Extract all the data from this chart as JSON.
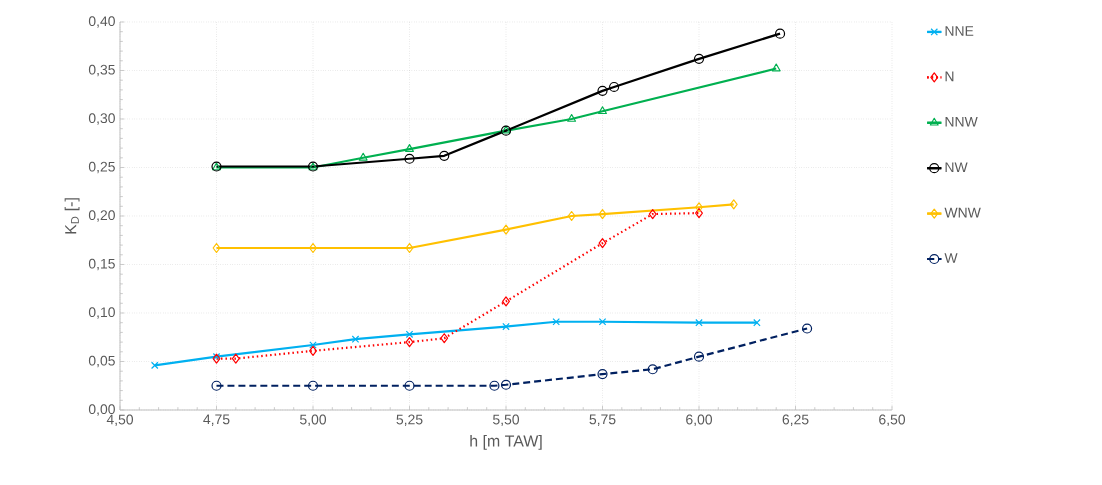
{
  "chart_data": {
    "type": "line",
    "xlabel": "h [m TAW]",
    "ylabel": "K$_{D}$ [-]",
    "xlim": [
      4.5,
      6.5
    ],
    "ylim": [
      0,
      0.4
    ],
    "xticks": [
      {
        "value": 4.5,
        "label": "4,50"
      },
      {
        "value": 4.75,
        "label": "4,75"
      },
      {
        "value": 5.0,
        "label": "5,00"
      },
      {
        "value": 5.25,
        "label": "5,25"
      },
      {
        "value": 5.5,
        "label": "5,50"
      },
      {
        "value": 5.75,
        "label": "5,75"
      },
      {
        "value": 6.0,
        "label": "6,00"
      },
      {
        "value": 6.25,
        "label": "6,25"
      },
      {
        "value": 6.5,
        "label": "6,50"
      }
    ],
    "yticks": [
      {
        "value": 0,
        "label": "0,00"
      },
      {
        "value": 0.05,
        "label": "0,05"
      },
      {
        "value": 0.1,
        "label": "0,10"
      },
      {
        "value": 0.15,
        "label": "0,15"
      },
      {
        "value": 0.2,
        "label": "0,20"
      },
      {
        "value": 0.25,
        "label": "0,25"
      },
      {
        "value": 0.3,
        "label": "0,30"
      },
      {
        "value": 0.35,
        "label": "0,35"
      },
      {
        "value": 0.4,
        "label": "0,40"
      }
    ],
    "grid": true,
    "legend": "right",
    "series": [
      {
        "name": "NNE",
        "color": "#00b0f0",
        "marker": "cross",
        "line_style": "solid",
        "x": [
          4.59,
          4.75,
          5.0,
          5.11,
          5.25,
          5.5,
          5.63,
          5.75,
          6.0,
          6.15
        ],
        "values": [
          0.046,
          0.055,
          0.067,
          0.073,
          0.078,
          0.086,
          0.091,
          0.091,
          0.09,
          0.09
        ]
      },
      {
        "name": "N",
        "color": "#ff0000",
        "marker": "diamond",
        "line_style": "dotted",
        "x": [
          4.75,
          4.8,
          5.0,
          5.25,
          5.34,
          5.5,
          5.75,
          5.88,
          6.0
        ],
        "values": [
          0.053,
          0.053,
          0.061,
          0.07,
          0.074,
          0.112,
          0.172,
          0.202,
          0.203
        ]
      },
      {
        "name": "NNW",
        "color": "#00b050",
        "marker": "triangle",
        "line_style": "solid",
        "x": [
          4.75,
          5.0,
          5.13,
          5.25,
          5.5,
          5.67,
          5.75,
          6.2
        ],
        "values": [
          0.25,
          0.25,
          0.26,
          0.269,
          0.288,
          0.3,
          0.308,
          0.352
        ]
      },
      {
        "name": "NW",
        "color": "#000000",
        "marker": "circle",
        "line_style": "solid",
        "x": [
          4.75,
          5.0,
          5.25,
          5.34,
          5.5,
          5.75,
          5.78,
          6.0,
          6.21
        ],
        "values": [
          0.251,
          0.251,
          0.259,
          0.262,
          0.288,
          0.329,
          0.333,
          0.362,
          0.388
        ]
      },
      {
        "name": "WNW",
        "color": "#ffc000",
        "marker": "diamond",
        "line_style": "solid",
        "x": [
          4.75,
          5.0,
          5.25,
          5.5,
          5.67,
          5.75,
          6.0,
          6.09
        ],
        "values": [
          0.167,
          0.167,
          0.167,
          0.186,
          0.2,
          0.202,
          0.209,
          0.212
        ]
      },
      {
        "name": "W",
        "color": "#002060",
        "marker": "circle",
        "line_style": "dashed",
        "x": [
          4.75,
          5.0,
          5.25,
          5.47,
          5.5,
          5.75,
          5.88,
          6.0,
          6.28
        ],
        "values": [
          0.025,
          0.025,
          0.025,
          0.025,
          0.026,
          0.037,
          0.042,
          0.055,
          0.084
        ]
      }
    ]
  }
}
